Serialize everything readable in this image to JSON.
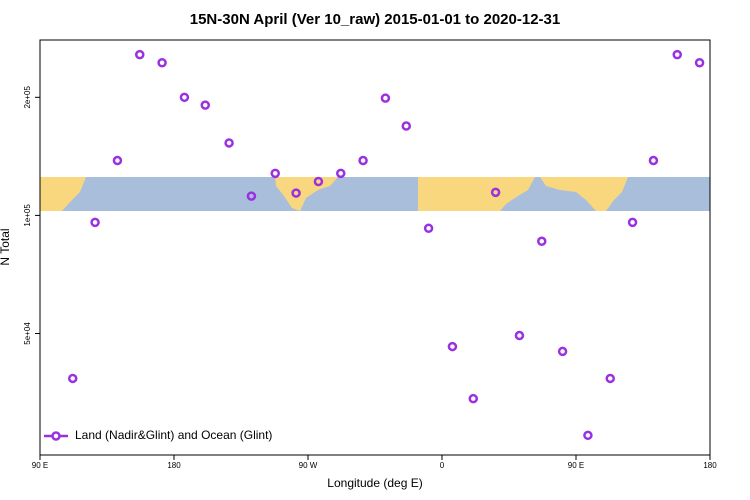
{
  "chart_data": {
    "type": "scatter",
    "title": "15N-30N April (Ver 10_raw)   2015-01-01 to 2020-12-31",
    "x_label": "Longitude (deg E)",
    "y_label": "N Total",
    "yscale": "log",
    "legend_position": "lower left",
    "xlim": [
      90,
      540
    ],
    "ylim": [
      24500,
      280000
    ],
    "xticks": [
      {
        "value": 90,
        "label": "90 E"
      },
      180,
      {
        "value": 270,
        "label": "90 W"
      },
      {
        "value": 360,
        "label": "0"
      },
      {
        "value": 450,
        "label": "90 E"
      },
      {
        "value": 540,
        "label": "180"
      }
    ],
    "yticks": [
      {
        "value": 50000,
        "label": "5e+04"
      },
      {
        "value": 100000,
        "label": "1e+05"
      },
      {
        "value": 200000,
        "label": "2e+05"
      }
    ],
    "series": [
      {
        "name": "Land (Nadir&Glint) and Ocean (Glint)",
        "color": "#9b30e0",
        "x": [
          112,
          127,
          142,
          157,
          172,
          187,
          201,
          217,
          232,
          248,
          262,
          277,
          292,
          307,
          322,
          336,
          351,
          367,
          381,
          396,
          412,
          427,
          441,
          458,
          473,
          488,
          502,
          518,
          533
        ],
        "values": [
          38400,
          96000,
          138000,
          257000,
          245000,
          200000,
          191000,
          153000,
          112000,
          128000,
          114000,
          122000,
          128000,
          138000,
          199000,
          169000,
          92700,
          46300,
          34100,
          114500,
          49400,
          85900,
          45000,
          27500,
          38400,
          96000,
          138000,
          257000,
          245000
        ]
      }
    ]
  }
}
